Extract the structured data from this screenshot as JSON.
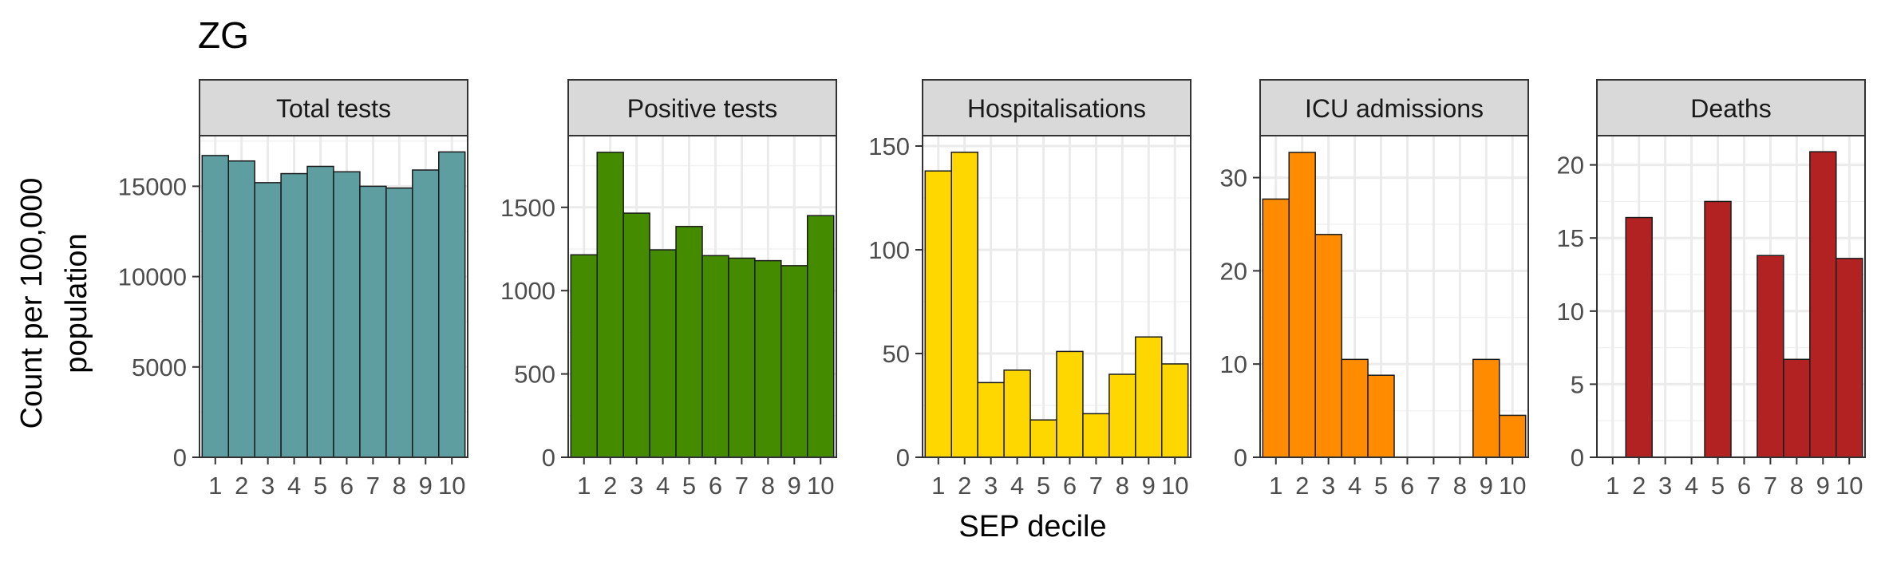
{
  "chart_data": {
    "type": "bar",
    "title": "ZG",
    "xlabel": "SEP decile",
    "ylabel_lines": [
      "Count per 100,000",
      "population"
    ],
    "x": [
      "1",
      "2",
      "3",
      "4",
      "5",
      "6",
      "7",
      "8",
      "9",
      "10"
    ],
    "grid": true,
    "panels": [
      {
        "name": "Total tests",
        "color": "#5F9EA0",
        "ylim": [
          0,
          17800
        ],
        "yticks": [
          0,
          5000,
          10000,
          15000
        ],
        "values": [
          16700,
          16400,
          15200,
          15700,
          16100,
          15800,
          15000,
          14900,
          15900,
          16900
        ]
      },
      {
        "name": "Positive tests",
        "color": "#458B00",
        "ylim": [
          0,
          1930
        ],
        "yticks": [
          0,
          500,
          1000,
          1500
        ],
        "values": [
          1215,
          1830,
          1465,
          1245,
          1385,
          1210,
          1195,
          1180,
          1150,
          1450
        ]
      },
      {
        "name": "Hospitalisations",
        "color": "#FFD700",
        "ylim": [
          0,
          155
        ],
        "yticks": [
          0,
          50,
          100,
          150
        ],
        "values": [
          138,
          147,
          36,
          42,
          18,
          51,
          21,
          40,
          58,
          45
        ]
      },
      {
        "name": "ICU admissions",
        "color": "#FF8C00",
        "ylim": [
          0,
          34.5
        ],
        "yticks": [
          0,
          10,
          20,
          30
        ],
        "values": [
          27.7,
          32.7,
          23.9,
          10.5,
          8.8,
          0,
          0,
          0,
          10.5,
          4.5
        ]
      },
      {
        "name": "Deaths",
        "color": "#B22222",
        "ylim": [
          0,
          22
        ],
        "yticks": [
          0,
          5,
          10,
          15,
          20
        ],
        "values": [
          0,
          16.4,
          0,
          0,
          17.5,
          0,
          13.8,
          6.7,
          20.9,
          13.6
        ]
      }
    ]
  }
}
